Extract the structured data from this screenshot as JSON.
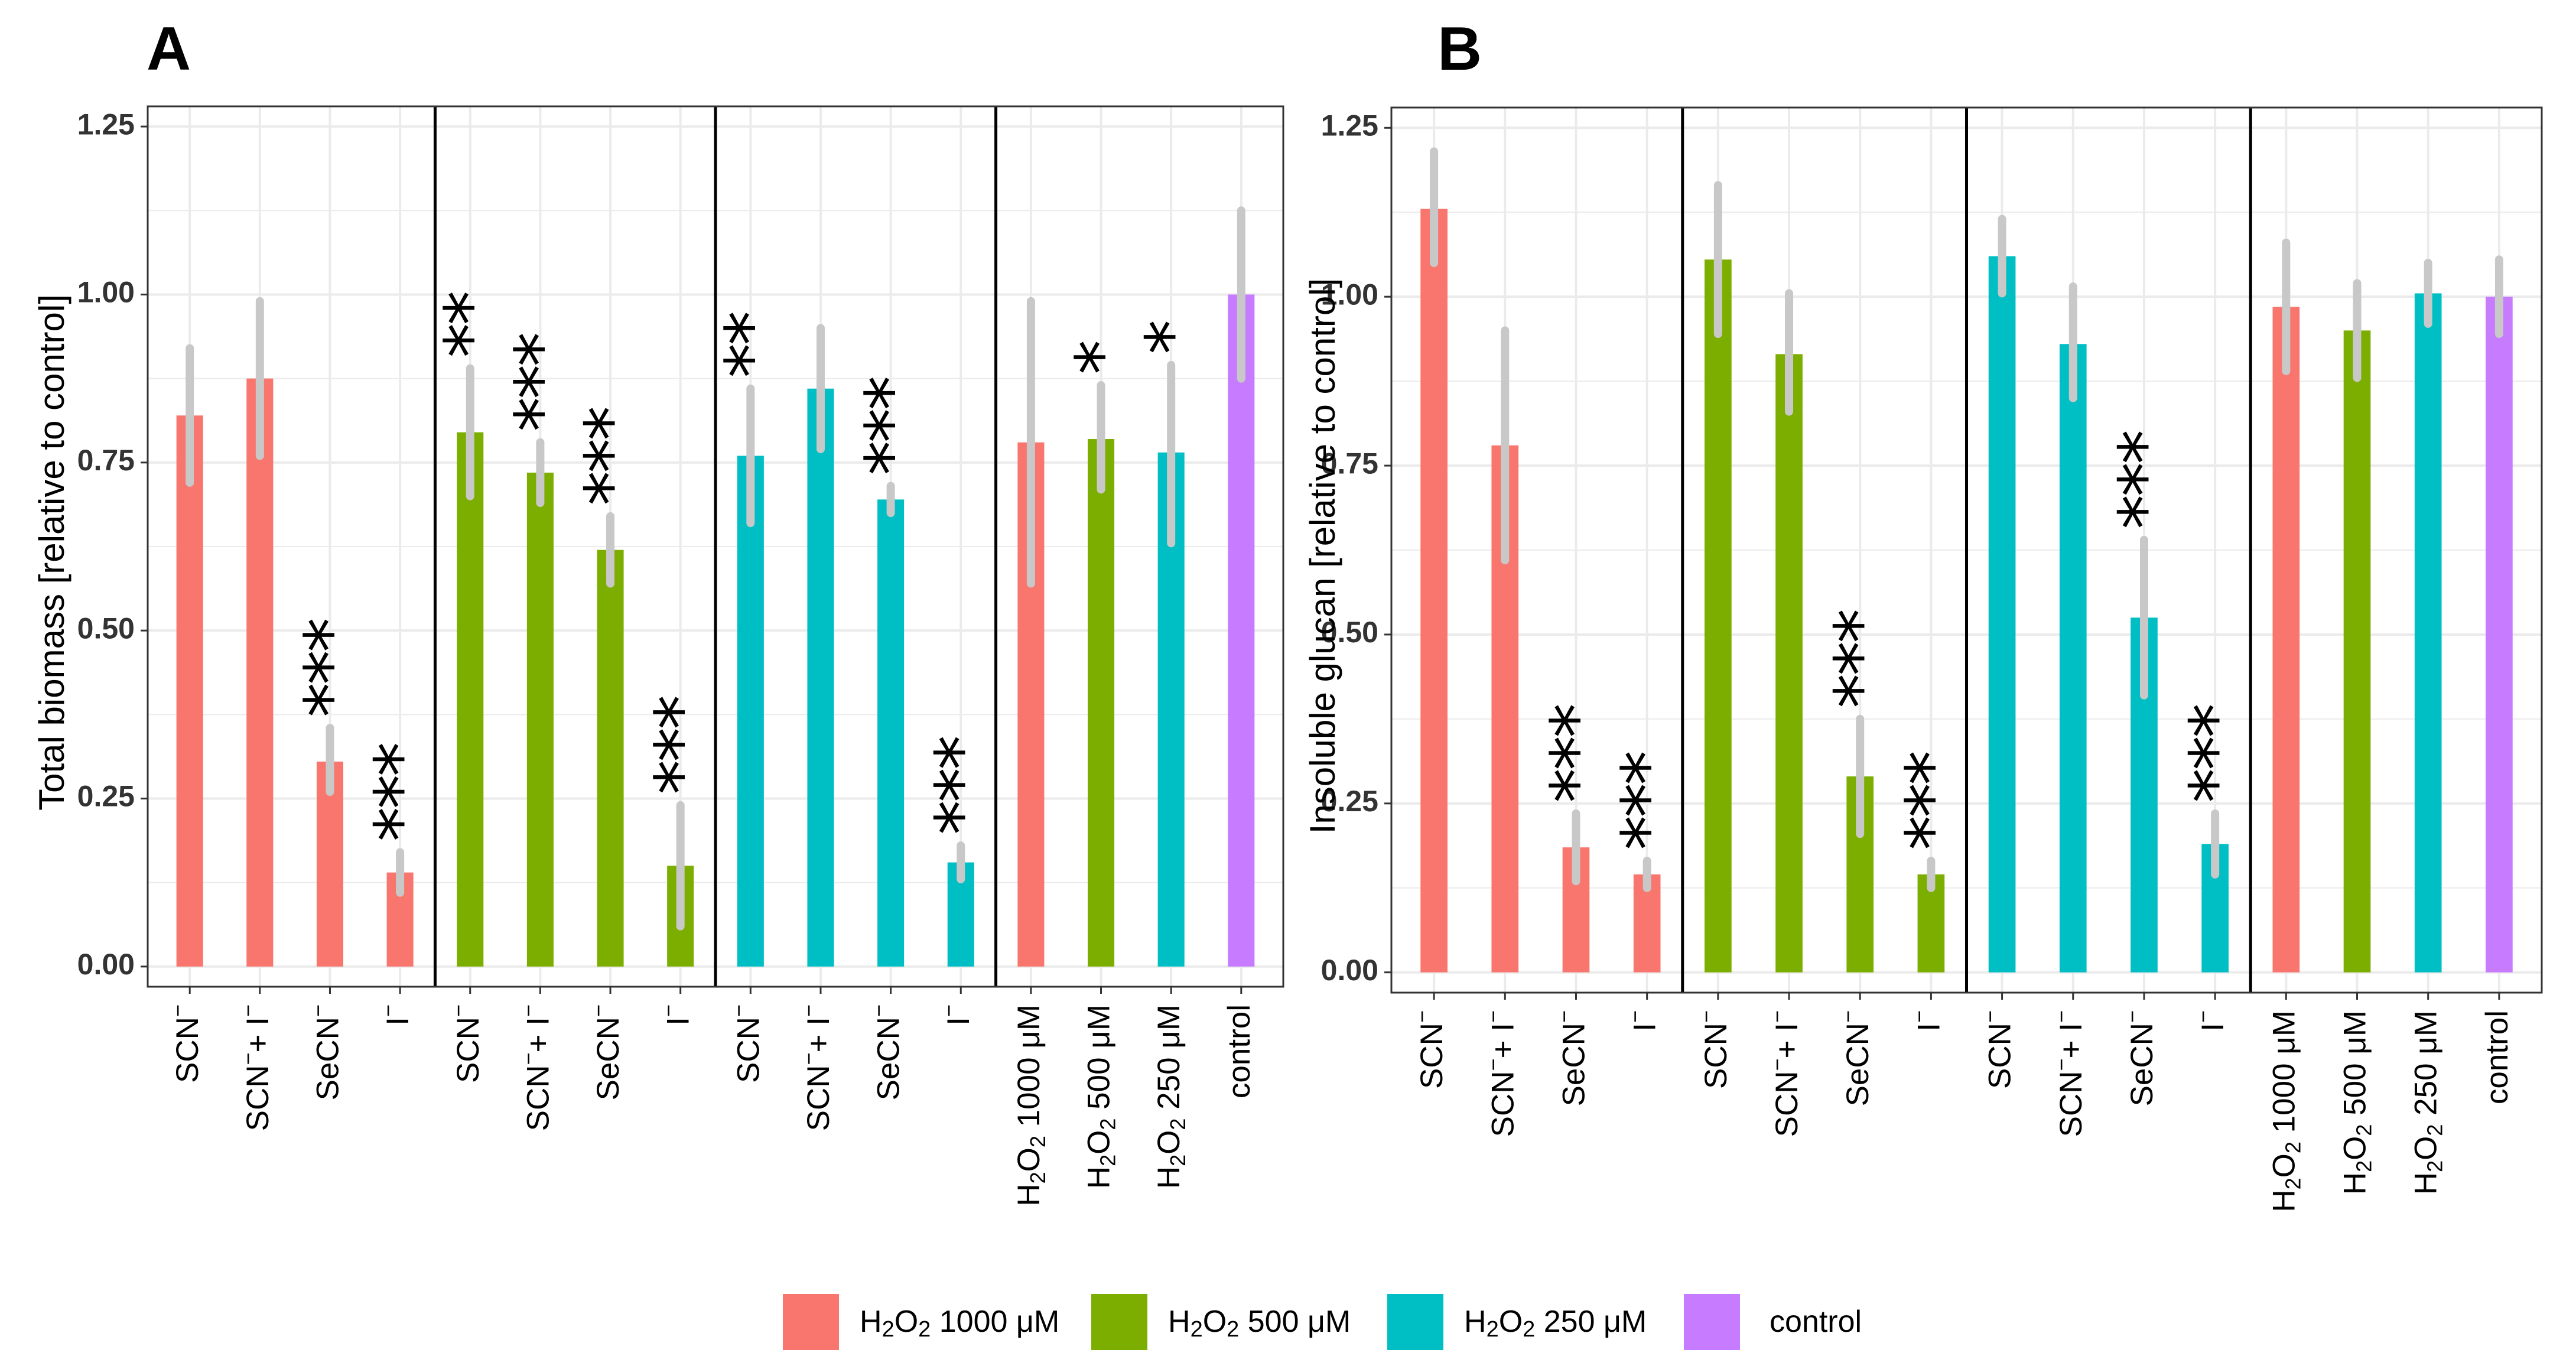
{
  "chart_data": [
    {
      "panel": "A",
      "type": "bar",
      "ylabel": "Total biomass [relative to control]",
      "ylim": [
        0,
        1.25
      ],
      "yticks": [
        "0.00",
        "0.25",
        "0.50",
        "0.75",
        "1.00",
        "1.25"
      ],
      "grid": true,
      "bars": [
        {
          "label": "SCN⁻",
          "value": 0.82,
          "err_low": 0.72,
          "err_high": 0.92,
          "stars": "",
          "color_group": "h1000"
        },
        {
          "label": "SCN⁻+ I⁻",
          "value": 0.875,
          "err_low": 0.76,
          "err_high": 0.99,
          "stars": "",
          "color_group": "h1000"
        },
        {
          "label": "SeCN⁻",
          "value": 0.305,
          "err_low": 0.26,
          "err_high": 0.355,
          "stars": "***",
          "color_group": "h1000"
        },
        {
          "label": "I⁻",
          "value": 0.14,
          "err_low": 0.11,
          "err_high": 0.17,
          "stars": "***",
          "color_group": "h1000"
        },
        {
          "label": "SCN⁻",
          "value": 0.795,
          "err_low": 0.7,
          "err_high": 0.89,
          "stars": "**",
          "color_group": "h500"
        },
        {
          "label": "SCN⁻+ I⁻",
          "value": 0.735,
          "err_low": 0.69,
          "err_high": 0.78,
          "stars": "***",
          "color_group": "h500"
        },
        {
          "label": "SeCN⁻",
          "value": 0.62,
          "err_low": 0.57,
          "err_high": 0.67,
          "stars": "***",
          "color_group": "h500"
        },
        {
          "label": "I⁻",
          "value": 0.15,
          "err_low": 0.06,
          "err_high": 0.24,
          "stars": "***",
          "color_group": "h500"
        },
        {
          "label": "SCN⁻",
          "value": 0.76,
          "err_low": 0.66,
          "err_high": 0.86,
          "stars": "**",
          "color_group": "h250"
        },
        {
          "label": "SCN⁻+ I⁻",
          "value": 0.86,
          "err_low": 0.77,
          "err_high": 0.95,
          "stars": "",
          "color_group": "h250"
        },
        {
          "label": "SeCN⁻",
          "value": 0.695,
          "err_low": 0.675,
          "err_high": 0.715,
          "stars": "***",
          "color_group": "h250"
        },
        {
          "label": "I⁻",
          "value": 0.155,
          "err_low": 0.13,
          "err_high": 0.18,
          "stars": "***",
          "color_group": "h250"
        },
        {
          "label": "H₂O₂ 1000 μM",
          "value": 0.78,
          "err_low": 0.57,
          "err_high": 0.99,
          "stars": "",
          "color_group": "h1000"
        },
        {
          "label": "H₂O₂ 500 μM",
          "value": 0.785,
          "err_low": 0.71,
          "err_high": 0.865,
          "stars": "*",
          "color_group": "h500"
        },
        {
          "label": "H₂O₂ 250 μM",
          "value": 0.765,
          "err_low": 0.63,
          "err_high": 0.895,
          "stars": "*",
          "color_group": "h250"
        },
        {
          "label": "control",
          "value": 1.0,
          "err_low": 0.875,
          "err_high": 1.125,
          "stars": "",
          "color_group": "control"
        }
      ]
    },
    {
      "panel": "B",
      "type": "bar",
      "ylabel": "Insoluble glucan [relative to control]",
      "ylim": [
        0,
        1.25
      ],
      "yticks": [
        "0.00",
        "0.25",
        "0.50",
        "0.75",
        "1.00",
        "1.25"
      ],
      "grid": true,
      "bars": [
        {
          "label": "SCN⁻",
          "value": 1.13,
          "err_low": 1.05,
          "err_high": 1.215,
          "stars": "",
          "color_group": "h1000"
        },
        {
          "label": "SCN⁻+ I⁻",
          "value": 0.78,
          "err_low": 0.61,
          "err_high": 0.95,
          "stars": "",
          "color_group": "h1000"
        },
        {
          "label": "SeCN⁻",
          "value": 0.185,
          "err_low": 0.135,
          "err_high": 0.235,
          "stars": "***",
          "color_group": "h1000"
        },
        {
          "label": "I⁻",
          "value": 0.145,
          "err_low": 0.125,
          "err_high": 0.165,
          "stars": "***",
          "color_group": "h1000"
        },
        {
          "label": "SCN⁻",
          "value": 1.055,
          "err_low": 0.945,
          "err_high": 1.165,
          "stars": "",
          "color_group": "h500"
        },
        {
          "label": "SCN⁻+ I⁻",
          "value": 0.915,
          "err_low": 0.83,
          "err_high": 1.005,
          "stars": "",
          "color_group": "h500"
        },
        {
          "label": "SeCN⁻",
          "value": 0.29,
          "err_low": 0.205,
          "err_high": 0.375,
          "stars": "***",
          "color_group": "h500"
        },
        {
          "label": "I⁻",
          "value": 0.145,
          "err_low": 0.125,
          "err_high": 0.165,
          "stars": "***",
          "color_group": "h500"
        },
        {
          "label": "SCN⁻",
          "value": 1.06,
          "err_low": 1.005,
          "err_high": 1.115,
          "stars": "",
          "color_group": "h250"
        },
        {
          "label": "SCN⁻+ I⁻",
          "value": 0.93,
          "err_low": 0.85,
          "err_high": 1.015,
          "stars": "",
          "color_group": "h250"
        },
        {
          "label": "SeCN⁻",
          "value": 0.525,
          "err_low": 0.41,
          "err_high": 0.64,
          "stars": "***",
          "color_group": "h250"
        },
        {
          "label": "I⁻",
          "value": 0.19,
          "err_low": 0.145,
          "err_high": 0.235,
          "stars": "***",
          "color_group": "h250"
        },
        {
          "label": "H₂O₂ 1000 μM",
          "value": 0.985,
          "err_low": 0.89,
          "err_high": 1.08,
          "stars": "",
          "color_group": "h1000"
        },
        {
          "label": "H₂O₂ 500 μM",
          "value": 0.95,
          "err_low": 0.88,
          "err_high": 1.02,
          "stars": "",
          "color_group": "h500"
        },
        {
          "label": "H₂O₂ 250 μM",
          "value": 1.005,
          "err_low": 0.96,
          "err_high": 1.05,
          "stars": "",
          "color_group": "h250"
        },
        {
          "label": "control",
          "value": 1.0,
          "err_low": 0.945,
          "err_high": 1.055,
          "stars": "",
          "color_group": "control"
        }
      ]
    }
  ],
  "legend": {
    "placement": "bottom",
    "items": [
      {
        "key": "h1000",
        "label": "H₂O₂  1000 μM"
      },
      {
        "key": "h500",
        "label": "H₂O₂  500  μM"
      },
      {
        "key": "h250",
        "label": "H₂O₂  250 μM"
      },
      {
        "key": "control",
        "label": "control"
      }
    ]
  },
  "colors": {
    "h1000": "#F8766D",
    "h500": "#7CAE00",
    "h250": "#00BFC4",
    "control": "#C77CFF",
    "errorbar": "#c8c8c8",
    "grid": "#ebebeb",
    "border": "#333333"
  }
}
